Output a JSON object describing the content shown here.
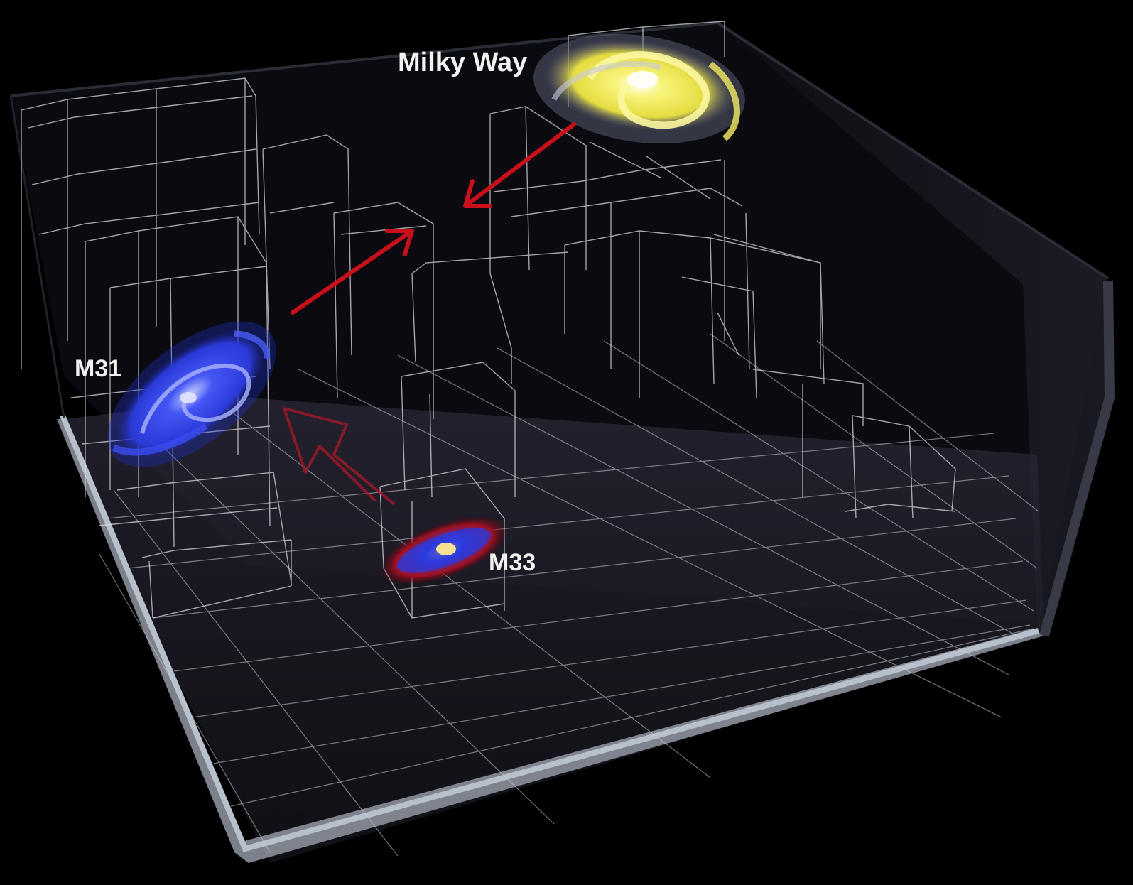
{
  "labels": {
    "milky_way": "Milky Way",
    "m31": "M31",
    "m33": "M33"
  },
  "colors": {
    "background": "#000000",
    "grid_line": "#d8d8e0",
    "floor": "#1c1a26",
    "frame": "#aab0bc",
    "arrow": "#c8101a",
    "milky_way": "#f0ec50",
    "m31": "#3a4cf0",
    "m33": "#2a3ae0",
    "m33_glow": "#c01818"
  },
  "icons": {
    "milky_way": "yellow-spiral-galaxy",
    "m31": "blue-spiral-galaxy",
    "m33": "small-spiral-galaxy-with-red-halo"
  }
}
